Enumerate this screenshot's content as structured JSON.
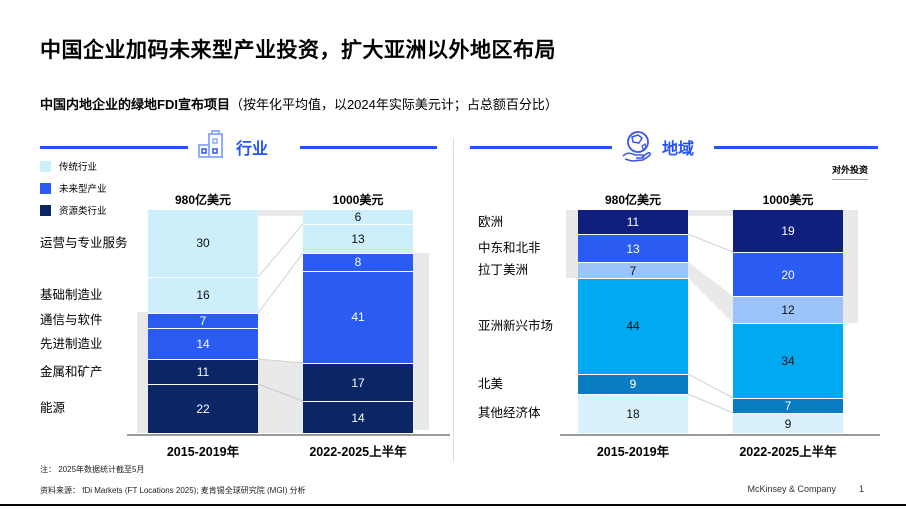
{
  "title": "中国企业加码未来型产业投资，扩大亚洲以外地区布局",
  "subtitle_bold": "中国内地企业的绿地FDI宣布项目",
  "subtitle_rest": "（按年化平均值，以2024年实际美元计；占总额百分比）",
  "outbound_label": "对外投资",
  "footnote": "注：  2025年数据统计截至5月",
  "source": "资料来源：  fDi Markets (FT Locations 2025); 麦肯锡全球研究院 (MGI) 分析",
  "footer_brand": "McKinsey & Company",
  "page_number": "1",
  "colors": {
    "accent_blue": "#2251ff",
    "trad": "#cdeefb",
    "future": "#2a5cf4",
    "resource": "#0b2667",
    "geo_navy": "#101f7e",
    "geo_blue": "#2a5cf4",
    "geo_periwinkle": "#9dc4fa",
    "geo_cyan": "#00a9f0",
    "geo_medblue": "#0a7cc2",
    "geo_pale": "#d9f1fc",
    "connector_gray": "#e9e9e9"
  },
  "legend": [
    {
      "label": "传统行业",
      "color_key": "trad"
    },
    {
      "label": "未来型产业",
      "color_key": "future"
    },
    {
      "label": "资源类行业",
      "color_key": "resource"
    }
  ],
  "chart_data": [
    {
      "type": "bar",
      "stacked": true,
      "section_title": "行业",
      "icon": "buildings-icon",
      "legend_position": "top-left",
      "col_headers": [
        "980亿美元",
        "1000美元"
      ],
      "rows": [
        "运营与专业服务",
        "基础制造业",
        "通信与软件",
        "先进制造业",
        "金属和矿产",
        "能源"
      ],
      "row_colors": [
        "trad",
        "trad",
        "future",
        "future",
        "resource",
        "resource"
      ],
      "value_colors": [
        "#111111",
        "#111111",
        "#ffffff",
        "#ffffff",
        "#ffffff",
        "#ffffff"
      ],
      "bars": [
        {
          "x_label": "2015-2019年",
          "values": [
            30,
            16,
            7,
            14,
            11,
            22
          ]
        },
        {
          "x_label": "2022-2025上半年",
          "values": [
            6,
            13,
            8,
            41,
            17,
            14
          ]
        }
      ]
    },
    {
      "type": "bar",
      "stacked": true,
      "section_title": "地域",
      "icon": "globe-hand-icon",
      "col_headers": [
        "980亿美元",
        "1000美元"
      ],
      "rows": [
        "欧洲",
        "中东和北非",
        "拉丁美洲",
        "亚洲新兴市场",
        "北美",
        "其他经济体"
      ],
      "row_colors": [
        "geo_navy",
        "geo_blue",
        "geo_periwinkle",
        "geo_cyan",
        "geo_medblue",
        "geo_pale"
      ],
      "value_colors": [
        "#ffffff",
        "#ffffff",
        "#111111",
        "#111111",
        "#ffffff",
        "#111111"
      ],
      "bars": [
        {
          "x_label": "2015-2019年",
          "values": [
            11,
            13,
            7,
            44,
            9,
            18
          ]
        },
        {
          "x_label": "2022-2025上半年",
          "values": [
            19,
            20,
            12,
            34,
            7,
            9
          ]
        }
      ]
    }
  ]
}
